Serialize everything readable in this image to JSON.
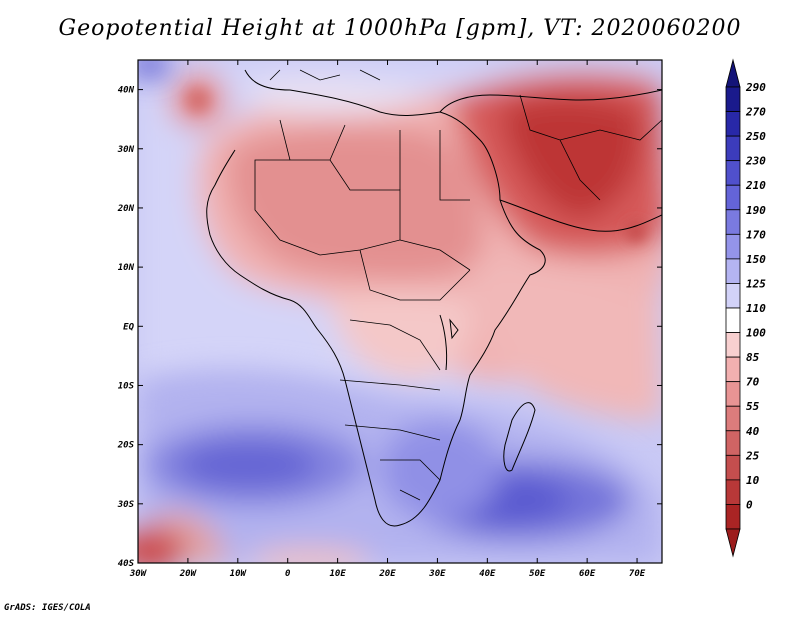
{
  "title": "Geopotential Height at 1000hPa [gpm], VT: 2020060200",
  "credit": "GrADS: IGES/COLA",
  "map": {
    "variable": "Geopotential Height at 1000hPa",
    "units": "gpm",
    "valid_time": "2020060200",
    "lon_range": [
      -30,
      75
    ],
    "lat_range": [
      -40,
      45
    ],
    "x_ticks": [
      "30W",
      "20W",
      "10W",
      "0",
      "10E",
      "20E",
      "30E",
      "40E",
      "50E",
      "60E",
      "70E"
    ],
    "y_ticks": [
      "40N",
      "30N",
      "20N",
      "10N",
      "EQ",
      "10S",
      "20S",
      "30S",
      "40S"
    ]
  },
  "colorbar": {
    "labels": [
      "290",
      "270",
      "250",
      "230",
      "210",
      "190",
      "170",
      "150",
      "125",
      "110",
      "100",
      "85",
      "70",
      "55",
      "40",
      "25",
      "10",
      "0"
    ],
    "colors": [
      "#1a1a8c",
      "#2828a8",
      "#3c3cbc",
      "#5050cc",
      "#6464d8",
      "#7a7ae0",
      "#9494ea",
      "#b4b4f2",
      "#d2d2f8",
      "#ffffff",
      "#f8d0d0",
      "#f2b0b0",
      "#e89494",
      "#dc7c7c",
      "#d06464",
      "#c44e4e",
      "#b83838",
      "#aa2424"
    ],
    "top_arrow_color": "#141478",
    "bottom_arrow_color": "#9c1c1c"
  }
}
